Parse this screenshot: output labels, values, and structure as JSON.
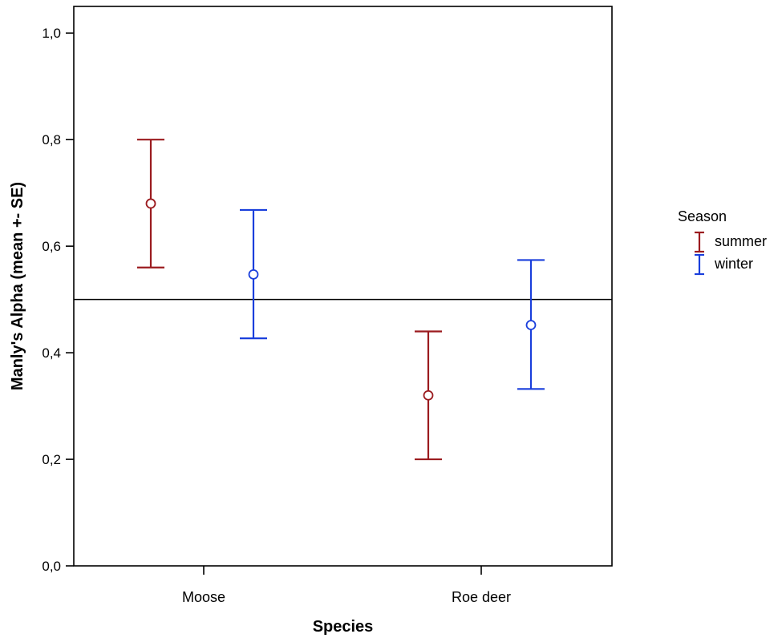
{
  "chart_data": {
    "type": "errorbar",
    "title": "",
    "xlabel": "Species",
    "ylabel": "Manly's Alpha (mean +-  SE)",
    "categories": [
      "Moose",
      "Roe deer"
    ],
    "ylim": [
      0,
      1.05
    ],
    "yticks": [
      0.0,
      0.2,
      0.4,
      0.6,
      0.8,
      1.0
    ],
    "ytick_labels": [
      "0,0",
      "0,2",
      "0,4",
      "0,6",
      "0,8",
      "1,0"
    ],
    "reference_line": 0.5,
    "grid": false,
    "legend": {
      "title": "Season",
      "position": "right"
    },
    "series": [
      {
        "name": "summer",
        "color": "#9b1b1f",
        "mean": [
          0.68,
          0.32
        ],
        "lower": [
          0.56,
          0.2
        ],
        "upper": [
          0.8,
          0.44
        ]
      },
      {
        "name": "winter",
        "color": "#1a3fdc",
        "mean": [
          0.547,
          0.452
        ],
        "lower": [
          0.427,
          0.332
        ],
        "upper": [
          0.668,
          0.574
        ]
      }
    ]
  }
}
